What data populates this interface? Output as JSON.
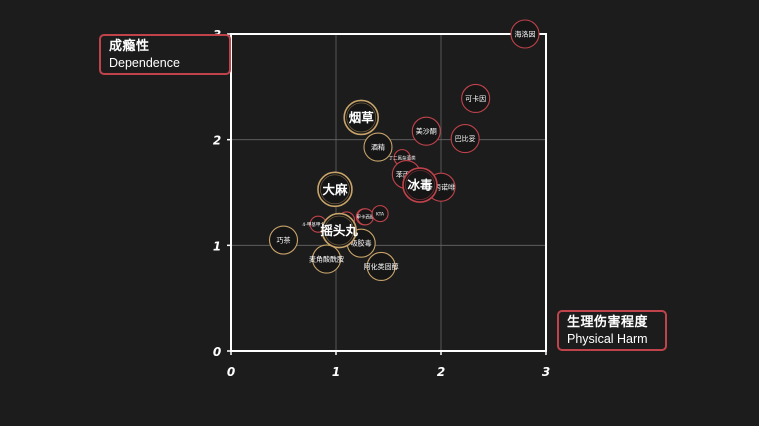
{
  "chart_data": {
    "type": "scatter",
    "xlim": [
      0,
      3
    ],
    "ylim": [
      0,
      3
    ],
    "x_ticks": [
      "0",
      "1",
      "2",
      "3"
    ],
    "y_ticks": [
      "0",
      "1",
      "2",
      "3"
    ],
    "ylabel_zh": "成瘾性",
    "ylabel_en": "Dependence",
    "xlabel_zh": "生理伤害程度",
    "xlabel_en": "Physical Harm",
    "grid": true,
    "colors": {
      "illegal": "#c0434b",
      "legal": "#c8a46a",
      "axis": "#ffffff",
      "grid": "#666666",
      "background": "#1c1c1c"
    },
    "points": [
      {
        "label": "海洛因",
        "x": 2.8,
        "y": 3.0,
        "size": "small",
        "category": "illegal"
      },
      {
        "label": "可卡因",
        "x": 2.33,
        "y": 2.39,
        "size": "small",
        "category": "illegal"
      },
      {
        "label": "巴比妥",
        "x": 2.23,
        "y": 2.01,
        "size": "small",
        "category": "illegal"
      },
      {
        "label": "美沙酮",
        "x": 1.86,
        "y": 2.08,
        "size": "small",
        "category": "illegal"
      },
      {
        "label": "烟草",
        "x": 1.24,
        "y": 2.21,
        "size": "large",
        "category": "legal"
      },
      {
        "label": "酒精",
        "x": 1.4,
        "y": 1.93,
        "size": "small",
        "category": "legal"
      },
      {
        "label": "丁二氮杂革类",
        "x": 1.63,
        "y": 1.83,
        "size": "tiny",
        "category": "illegal"
      },
      {
        "label": "苯丙胺",
        "x": 1.67,
        "y": 1.67,
        "size": "small",
        "category": "illegal"
      },
      {
        "label": "丁丙诺啡",
        "x": 2.0,
        "y": 1.55,
        "size": "small",
        "category": "illegal"
      },
      {
        "label": "冰毒",
        "x": 1.8,
        "y": 1.57,
        "size": "large",
        "category": "illegal"
      },
      {
        "label": "大麻",
        "x": 0.99,
        "y": 1.53,
        "size": "large",
        "category": "legal"
      },
      {
        "label": "4-甲基甲卡西酮",
        "x": 0.83,
        "y": 1.2,
        "size": "tiny",
        "category": "illegal"
      },
      {
        "label": "GHB",
        "x": 1.1,
        "y": 1.24,
        "size": "tiny",
        "category": "illegal"
      },
      {
        "label": "氯胺酮",
        "x": 1.27,
        "y": 1.27,
        "size": "tiny",
        "category": "illegal"
      },
      {
        "label": "甲卡西酮",
        "x": 1.28,
        "y": 1.27,
        "size": "tiny",
        "category": "illegal"
      },
      {
        "label": "KTA",
        "x": 1.42,
        "y": 1.3,
        "size": "tiny",
        "category": "illegal"
      },
      {
        "label": "摇头丸",
        "x": 1.03,
        "y": 1.14,
        "size": "large",
        "category": "legal"
      },
      {
        "label": "吸胶毒",
        "x": 1.24,
        "y": 1.02,
        "size": "small",
        "category": "legal"
      },
      {
        "label": "巧茶",
        "x": 0.5,
        "y": 1.05,
        "size": "small",
        "category": "legal"
      },
      {
        "label": "麦角酸酰胺",
        "x": 0.91,
        "y": 0.87,
        "size": "small",
        "category": "legal"
      },
      {
        "label": "阿化类固醇",
        "x": 1.43,
        "y": 0.8,
        "size": "small",
        "category": "legal"
      }
    ]
  }
}
